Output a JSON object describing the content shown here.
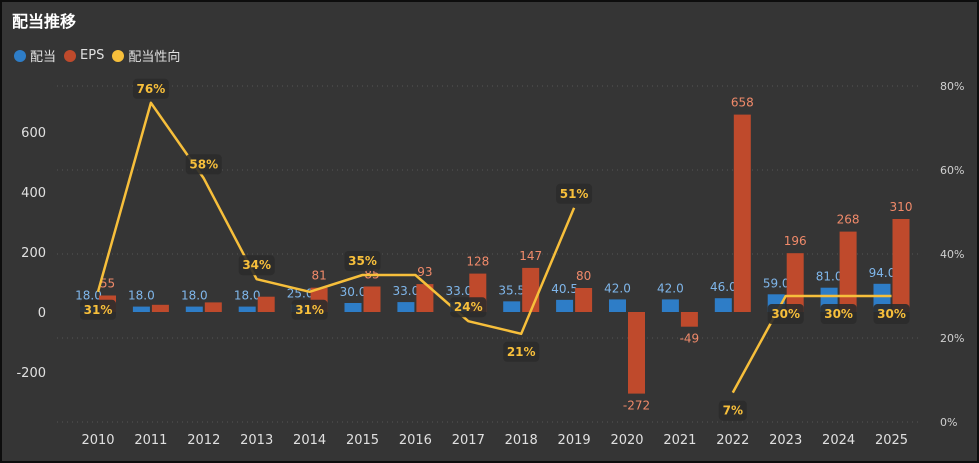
{
  "title": "配当推移",
  "legend": [
    {
      "name": "配当",
      "color": "#2e7dc7"
    },
    {
      "name": "EPS",
      "color": "#bf4a2c"
    },
    {
      "name": "配当性向",
      "color": "#f7bf3b"
    }
  ],
  "chart_data": {
    "type": "bar",
    "title": "配当推移",
    "categories": [
      "2010",
      "2011",
      "2012",
      "2013",
      "2014",
      "2015",
      "2016",
      "2017",
      "2018",
      "2019",
      "2020",
      "2021",
      "2022",
      "2023",
      "2024",
      "2025"
    ],
    "series": [
      {
        "name": "配当",
        "type": "bar",
        "axis": "left",
        "color": "#2e7dc7",
        "values": [
          18.0,
          18.0,
          18.0,
          18.0,
          25.0,
          30.0,
          33.0,
          33.0,
          35.5,
          40.5,
          42.0,
          42.0,
          46.0,
          59.0,
          81.0,
          94.0
        ],
        "labels": [
          "18.0",
          "18.0",
          "18.0",
          "18.0",
          "25.0",
          "30.0",
          "33.0",
          "33.0",
          "35.5",
          "40.5",
          "42.0",
          "42.0",
          "46.0",
          "59.0",
          "81.0",
          "94.0"
        ]
      },
      {
        "name": "EPS",
        "type": "bar",
        "axis": "left",
        "color": "#bf4a2c",
        "values": [
          55,
          24,
          32,
          51,
          81,
          85,
          93,
          128,
          147,
          80,
          -272,
          -49,
          658,
          196,
          268,
          310
        ],
        "labels": [
          "55",
          "",
          "",
          "",
          "81",
          "85",
          "93",
          "128",
          "147",
          "80",
          "-272",
          "-49",
          "658",
          "196",
          "268",
          "310"
        ]
      },
      {
        "name": "配当性向",
        "type": "line",
        "axis": "right",
        "color": "#f7bf3b",
        "values": [
          31,
          76,
          58,
          34,
          31,
          35,
          35,
          24,
          21,
          51,
          null,
          null,
          7,
          30,
          30,
          30
        ],
        "labels": [
          "31%",
          "76%",
          "58%",
          "34%",
          "31%",
          "35%",
          "",
          "24%",
          "21%",
          "51%",
          "",
          "",
          "7%",
          "30%",
          "30%",
          "30%"
        ]
      }
    ],
    "y_left": {
      "ticks": [
        -200,
        0,
        200,
        400,
        600
      ],
      "ylim": [
        -350,
        750
      ]
    },
    "y_right": {
      "ticks": [
        "0%",
        "20%",
        "40%",
        "60%",
        "80%"
      ],
      "tick_values": [
        0,
        20,
        40,
        60,
        80
      ],
      "ylim": [
        0,
        80
      ]
    },
    "legend_position": "top-left",
    "grid": "dotted"
  }
}
